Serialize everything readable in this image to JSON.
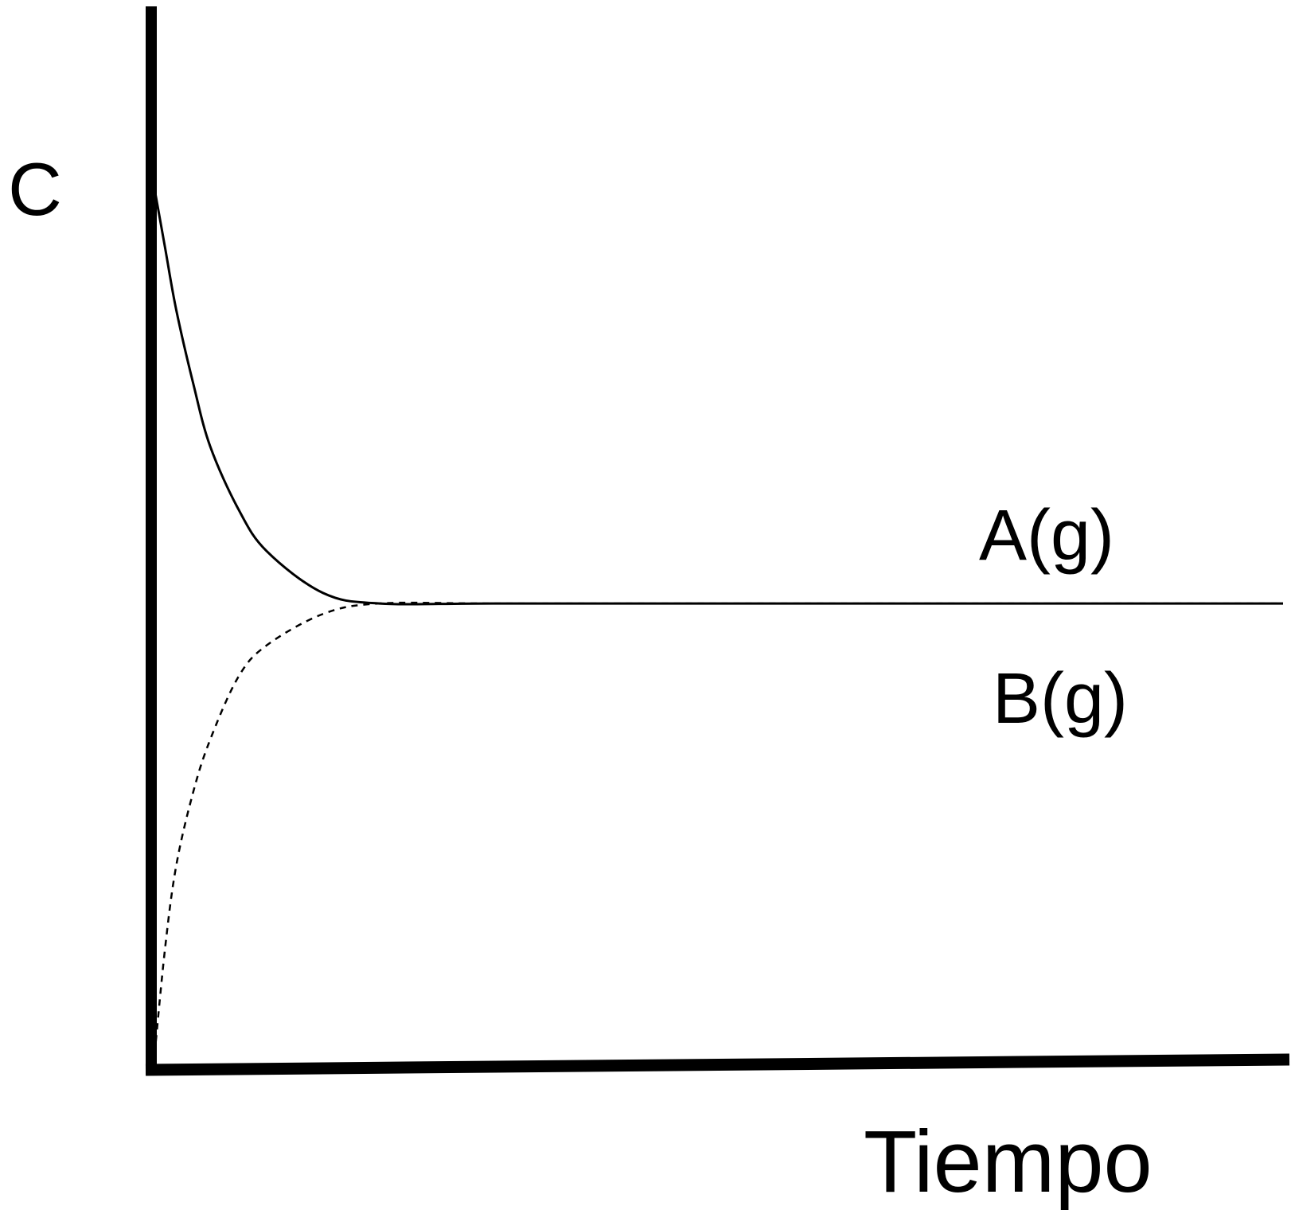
{
  "chart_data": {
    "type": "line",
    "title": "",
    "xlabel": "Tiempo",
    "ylabel": "C",
    "x": [
      0,
      0.1,
      0.2,
      0.35,
      0.5,
      0.75,
      1.0,
      1.5,
      2.0,
      3.0,
      5.0,
      7.0,
      10.0
    ],
    "xlim": [
      0,
      10
    ],
    "ylim": [
      0,
      1
    ],
    "grid": false,
    "legend": "none",
    "series": [
      {
        "name": "A(g)",
        "style": "solid",
        "color": "#000000",
        "values": [
          0.84,
          0.78,
          0.72,
          0.65,
          0.59,
          0.53,
          0.49,
          0.45,
          0.44,
          0.44,
          0.44,
          0.44,
          0.44
        ]
      },
      {
        "name": "B(g)",
        "style": "dashed",
        "color": "#000000",
        "values": [
          0.0,
          0.11,
          0.19,
          0.26,
          0.31,
          0.37,
          0.4,
          0.43,
          0.44,
          0.44,
          0.44,
          0.44,
          0.44
        ]
      }
    ]
  }
}
